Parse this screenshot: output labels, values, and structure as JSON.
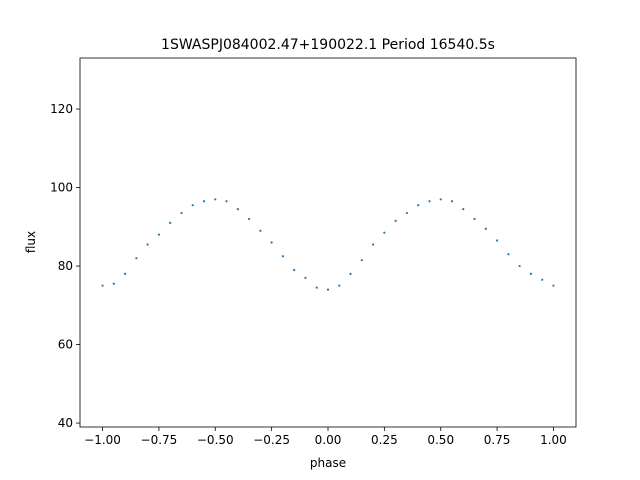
{
  "chart_data": {
    "type": "scatter",
    "title": "1SWASPJ084002.47+190022.1 Period 16540.5s",
    "xlabel": "phase",
    "ylabel": "flux",
    "xlim": [
      -1.1,
      1.1
    ],
    "ylim": [
      39,
      133
    ],
    "xticks": [
      -1.0,
      -0.75,
      -0.5,
      -0.25,
      0.0,
      0.25,
      0.5,
      0.75,
      1.0
    ],
    "xtick_labels": [
      "−1.00",
      "−0.75",
      "−0.50",
      "−0.25",
      "0.00",
      "0.25",
      "0.50",
      "0.75",
      "1.00"
    ],
    "yticks": [
      40,
      60,
      80,
      100,
      120
    ],
    "ytick_labels": [
      "40",
      "60",
      "80",
      "100",
      "120"
    ],
    "grid": false,
    "marker_color": "#1f77b4",
    "series": [
      {
        "phase": [
          -1.0,
          -0.95,
          -0.9,
          -0.85,
          -0.8,
          -0.75,
          -0.7,
          -0.65,
          -0.6,
          -0.55,
          -0.5,
          -0.45,
          -0.4,
          -0.35,
          -0.3,
          -0.25,
          -0.2,
          -0.15,
          -0.1,
          -0.05,
          0.0,
          0.05,
          0.1,
          0.15,
          0.2,
          0.25,
          0.3,
          0.35,
          0.4,
          0.45,
          0.5,
          0.55,
          0.6,
          0.65,
          0.7,
          0.75,
          0.8,
          0.85,
          0.9,
          0.95,
          1.0
        ],
        "flux": [
          75,
          75.5,
          78,
          82,
          85.5,
          88,
          91,
          93.5,
          95.5,
          96.5,
          97,
          96.5,
          94.5,
          92,
          89,
          86,
          82.5,
          79,
          77,
          74.5,
          74,
          75,
          78,
          81.5,
          85.5,
          88.5,
          91.5,
          93.5,
          95.5,
          96.5,
          97,
          96.5,
          94.5,
          92,
          89.5,
          86.5,
          83,
          80,
          78,
          76.5,
          75
        ]
      }
    ]
  }
}
